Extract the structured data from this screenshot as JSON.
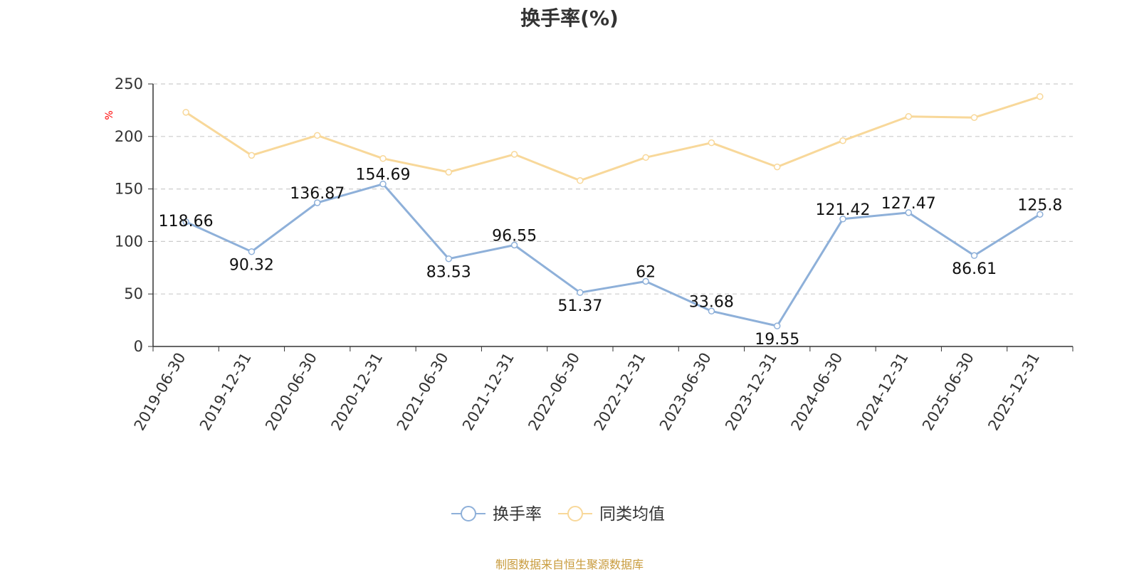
{
  "chart_data": {
    "type": "line",
    "title": "换手率(%)",
    "ylabel": "%",
    "xlabel": "",
    "ylim": [
      0,
      250
    ],
    "yticks": [
      0,
      50,
      100,
      150,
      200,
      250
    ],
    "grid": true,
    "legend_position": "bottom",
    "categories": [
      "2019-06-30",
      "2019-12-31",
      "2020-06-30",
      "2020-12-31",
      "2021-06-30",
      "2021-12-31",
      "2022-06-30",
      "2022-12-31",
      "2023-06-30",
      "2023-12-31",
      "2024-06-30",
      "2024-12-31",
      "2025-06-30",
      "2025-12-31"
    ],
    "series": [
      {
        "name": "换手率",
        "color": "#8eb0d9",
        "show_labels": true,
        "values": [
          118.66,
          90.32,
          136.87,
          154.69,
          83.53,
          96.55,
          51.37,
          62,
          33.68,
          19.55,
          121.42,
          127.47,
          86.61,
          125.8
        ]
      },
      {
        "name": "同类均值",
        "color": "#f8d89a",
        "show_labels": false,
        "values": [
          223,
          182,
          201,
          179,
          166,
          183,
          158,
          180,
          194,
          171,
          196,
          219,
          218,
          238
        ]
      }
    ],
    "source_note": "制图数据来自恒生聚源数据库"
  }
}
